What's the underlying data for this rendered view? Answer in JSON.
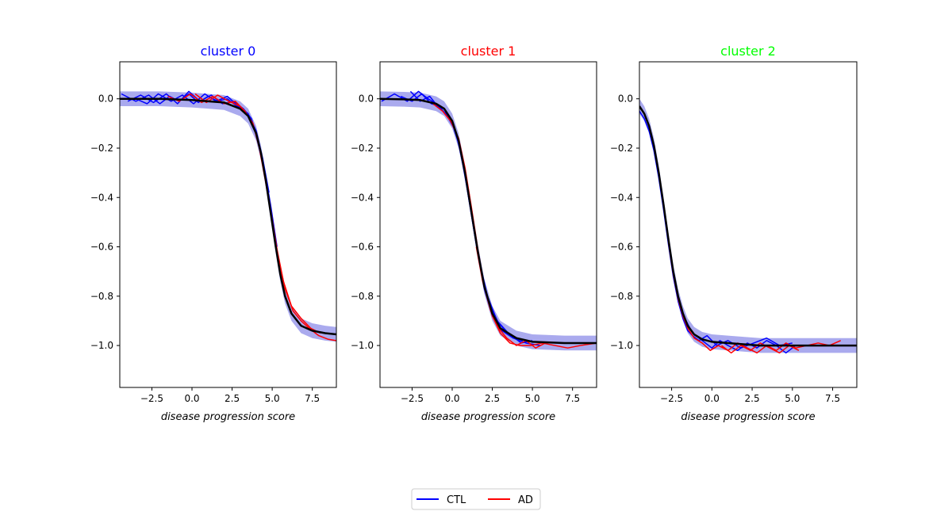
{
  "chart_data": {
    "type": "line",
    "xlabel": "disease progression score",
    "xlim": [
      -4.5,
      9.0
    ],
    "ylim": [
      -1.17,
      0.15
    ],
    "xticks": [
      -2.5,
      0.0,
      2.5,
      5.0,
      7.5
    ],
    "xtick_labels": [
      "−2.5",
      "0.0",
      "2.5",
      "5.0",
      "7.5"
    ],
    "yticks": [
      0.0,
      -0.2,
      -0.4,
      -0.6,
      -0.8,
      -1.0
    ],
    "ytick_labels": [
      "0.0",
      "−0.2",
      "−0.4",
      "−0.6",
      "−0.8",
      "−1.0"
    ],
    "legend": {
      "placement": "bottom-center",
      "entries": [
        {
          "label": "CTL",
          "color": "#0000ff"
        },
        {
          "label": "AD",
          "color": "#ff0000"
        }
      ]
    },
    "band_color": "#aaaaee",
    "mean_color": "#000000",
    "panels": [
      {
        "title": "cluster 0",
        "title_color": "#0000ff",
        "mean_curve": {
          "x": [
            -4.5,
            -2.0,
            0.0,
            2.0,
            3.0,
            3.5,
            4.0,
            4.3,
            4.6,
            4.9,
            5.2,
            5.5,
            5.8,
            6.2,
            6.8,
            7.5,
            8.3,
            9.0
          ],
          "y": [
            0.0,
            0.0,
            -0.005,
            -0.015,
            -0.04,
            -0.07,
            -0.14,
            -0.22,
            -0.33,
            -0.46,
            -0.59,
            -0.71,
            -0.8,
            -0.87,
            -0.92,
            -0.94,
            -0.95,
            -0.955
          ]
        },
        "band_halfwidth": 0.03,
        "ctl_series": [
          {
            "x": [
              -4.4,
              -3.5,
              -2.7,
              -2.0,
              -1.4,
              -0.8,
              -0.2,
              0.4,
              1.0,
              1.6,
              2.2,
              2.8,
              3.3,
              3.8,
              4.2,
              4.6,
              5.0
            ],
            "y": [
              0.02,
              -0.01,
              0.015,
              -0.02,
              0.01,
              -0.01,
              0.02,
              -0.015,
              0.01,
              -0.01,
              0.0,
              -0.03,
              -0.05,
              -0.1,
              -0.2,
              -0.33,
              -0.48
            ]
          },
          {
            "x": [
              -4.0,
              -3.2,
              -2.4,
              -1.6,
              -0.9,
              -0.2,
              0.5,
              1.2,
              1.9,
              2.6,
              3.2,
              3.7,
              4.1,
              4.5,
              4.9,
              5.3
            ],
            "y": [
              -0.01,
              0.015,
              -0.015,
              0.02,
              -0.02,
              0.03,
              -0.01,
              0.015,
              -0.02,
              -0.01,
              -0.04,
              -0.08,
              -0.16,
              -0.28,
              -0.43,
              -0.6
            ]
          },
          {
            "x": [
              -3.5,
              -2.8,
              -2.1,
              -1.3,
              -0.6,
              0.1,
              0.8,
              1.5,
              2.2,
              2.9,
              3.5,
              4.0,
              4.4,
              4.8
            ],
            "y": [
              0.0,
              -0.02,
              0.02,
              -0.01,
              0.015,
              -0.02,
              0.02,
              -0.01,
              0.01,
              -0.03,
              -0.06,
              -0.13,
              -0.24,
              -0.38
            ]
          }
        ],
        "ad_series": [
          {
            "x": [
              -1.5,
              -0.8,
              -0.1,
              0.6,
              1.3,
              2.0,
              2.7,
              3.3,
              3.8,
              4.2,
              4.6,
              5.0,
              5.4,
              5.8,
              6.3,
              6.8,
              7.3,
              7.9,
              8.5,
              9.0
            ],
            "y": [
              0.01,
              -0.01,
              0.02,
              -0.015,
              0.01,
              -0.02,
              -0.01,
              -0.05,
              -0.1,
              -0.2,
              -0.34,
              -0.5,
              -0.65,
              -0.77,
              -0.86,
              -0.9,
              -0.93,
              -0.96,
              -0.975,
              -0.98
            ]
          },
          {
            "x": [
              0.2,
              0.9,
              1.6,
              2.3,
              3.0,
              3.6,
              4.1,
              4.5,
              4.9,
              5.3,
              5.7,
              6.2,
              6.8,
              7.4,
              8.0
            ],
            "y": [
              0.02,
              -0.015,
              0.015,
              -0.01,
              -0.03,
              -0.08,
              -0.16,
              -0.29,
              -0.45,
              -0.61,
              -0.74,
              -0.84,
              -0.89,
              -0.93,
              -0.95
            ]
          }
        ]
      },
      {
        "title": "cluster 1",
        "title_color": "#ff0000",
        "mean_curve": {
          "x": [
            -4.5,
            -3.0,
            -2.0,
            -1.0,
            -0.5,
            0.0,
            0.4,
            0.8,
            1.2,
            1.6,
            2.0,
            2.5,
            3.0,
            4.0,
            5.0,
            7.0,
            9.0
          ],
          "y": [
            0.0,
            -0.002,
            -0.005,
            -0.02,
            -0.04,
            -0.09,
            -0.17,
            -0.3,
            -0.46,
            -0.62,
            -0.76,
            -0.87,
            -0.93,
            -0.97,
            -0.985,
            -0.99,
            -0.99
          ]
        },
        "band_halfwidth": 0.03,
        "ctl_series": [
          {
            "x": [
              -4.4,
              -3.6,
              -2.8,
              -2.1,
              -1.5,
              -1.0,
              -0.5,
              0.0,
              0.4,
              0.8,
              1.2,
              1.6,
              2.0,
              2.5,
              3.1,
              3.8,
              4.6,
              5.5
            ],
            "y": [
              -0.01,
              0.02,
              -0.01,
              0.03,
              0.0,
              -0.02,
              -0.04,
              -0.1,
              -0.18,
              -0.31,
              -0.47,
              -0.63,
              -0.77,
              -0.88,
              -0.94,
              -0.97,
              -0.99,
              -1.0
            ]
          },
          {
            "x": [
              -3.2,
              -2.5,
              -1.9,
              -1.3,
              -0.8,
              -0.3,
              0.2,
              0.6,
              1.0,
              1.4,
              1.8,
              2.3,
              2.9,
              3.6,
              4.4
            ],
            "y": [
              0.01,
              -0.01,
              0.02,
              -0.02,
              -0.03,
              -0.07,
              -0.13,
              -0.24,
              -0.39,
              -0.55,
              -0.7,
              -0.83,
              -0.91,
              -0.96,
              -0.98
            ]
          },
          {
            "x": [
              -2.6,
              -2.0,
              -1.4,
              -0.9,
              -0.4,
              0.1,
              0.5,
              0.9,
              1.3,
              1.7,
              2.2,
              2.8,
              3.5,
              4.3,
              5.0
            ],
            "y": [
              0.03,
              -0.01,
              0.01,
              -0.03,
              -0.06,
              -0.11,
              -0.2,
              -0.34,
              -0.5,
              -0.66,
              -0.8,
              -0.9,
              -0.95,
              -0.99,
              -0.98
            ]
          }
        ],
        "ad_series": [
          {
            "x": [
              -1.2,
              -0.6,
              -0.1,
              0.4,
              0.8,
              1.2,
              1.6,
              2.0,
              2.5,
              3.0,
              3.6,
              4.2,
              4.9,
              5.6,
              6.4,
              7.2,
              8.0,
              9.0
            ],
            "y": [
              -0.02,
              -0.05,
              -0.09,
              -0.16,
              -0.28,
              -0.44,
              -0.61,
              -0.76,
              -0.88,
              -0.95,
              -0.99,
              -1.0,
              -1.0,
              -0.99,
              -1.0,
              -1.01,
              -1.0,
              -0.99
            ]
          },
          {
            "x": [
              1.5,
              1.9,
              2.4,
              2.9,
              3.4,
              4.0,
              4.6,
              5.2,
              5.8
            ],
            "y": [
              -0.6,
              -0.74,
              -0.86,
              -0.93,
              -0.97,
              -1.0,
              -0.98,
              -1.01,
              -0.99
            ]
          }
        ]
      },
      {
        "title": "cluster 2",
        "title_color": "#00ff00",
        "mean_curve": {
          "x": [
            -4.5,
            -4.2,
            -3.9,
            -3.6,
            -3.3,
            -3.0,
            -2.7,
            -2.4,
            -2.1,
            -1.8,
            -1.5,
            -1.1,
            -0.6,
            0.0,
            1.0,
            3.0,
            9.0
          ],
          "y": [
            -0.03,
            -0.06,
            -0.11,
            -0.19,
            -0.3,
            -0.43,
            -0.57,
            -0.7,
            -0.8,
            -0.87,
            -0.92,
            -0.955,
            -0.975,
            -0.985,
            -0.99,
            -1.0,
            -1.0
          ]
        },
        "band_halfwidth": 0.03,
        "ctl_series": [
          {
            "x": [
              -4.5,
              -4.2,
              -3.9,
              -3.6,
              -3.3,
              -3.0,
              -2.7,
              -2.4,
              -2.1,
              -1.8,
              -1.5,
              -1.2,
              -0.8,
              -0.3,
              0.3,
              1.0,
              1.8,
              2.6,
              3.4,
              4.2,
              5.0
            ],
            "y": [
              -0.05,
              -0.08,
              -0.13,
              -0.21,
              -0.32,
              -0.45,
              -0.59,
              -0.72,
              -0.82,
              -0.89,
              -0.94,
              -0.96,
              -0.98,
              -0.96,
              -1.0,
              -0.98,
              -1.01,
              -0.99,
              -0.97,
              -1.0,
              -0.99
            ]
          },
          {
            "x": [
              -1.6,
              -1.2,
              -0.8,
              -0.4,
              0.0,
              0.5,
              1.0,
              1.6,
              2.2,
              2.8,
              3.4,
              4.0,
              4.6,
              5.2
            ],
            "y": [
              -0.9,
              -0.95,
              -0.97,
              -0.99,
              -1.01,
              -0.98,
              -1.0,
              -1.02,
              -0.99,
              -1.01,
              -0.98,
              -1.0,
              -1.03,
              -1.0
            ]
          }
        ],
        "ad_series": [
          {
            "x": [
              -2.7,
              -2.4,
              -2.1,
              -1.8,
              -1.5,
              -1.1,
              -0.6,
              -0.1,
              0.4,
              1.0,
              1.6,
              2.2,
              2.8,
              3.4,
              4.0,
              4.6,
              5.2,
              5.9,
              6.6,
              7.3,
              8.0
            ],
            "y": [
              -0.58,
              -0.71,
              -0.81,
              -0.88,
              -0.93,
              -0.97,
              -0.99,
              -1.02,
              -1.0,
              -1.02,
              -0.99,
              -1.01,
              -1.03,
              -1.0,
              -1.02,
              -0.99,
              -1.01,
              -1.0,
              -0.99,
              -1.0,
              -0.98
            ]
          },
          {
            "x": [
              0.6,
              1.2,
              1.8,
              2.4,
              3.0,
              3.6,
              4.2,
              4.8,
              5.4
            ],
            "y": [
              -1.0,
              -1.03,
              -1.0,
              -1.02,
              -0.99,
              -1.01,
              -1.03,
              -1.0,
              -1.02
            ]
          }
        ]
      }
    ]
  }
}
